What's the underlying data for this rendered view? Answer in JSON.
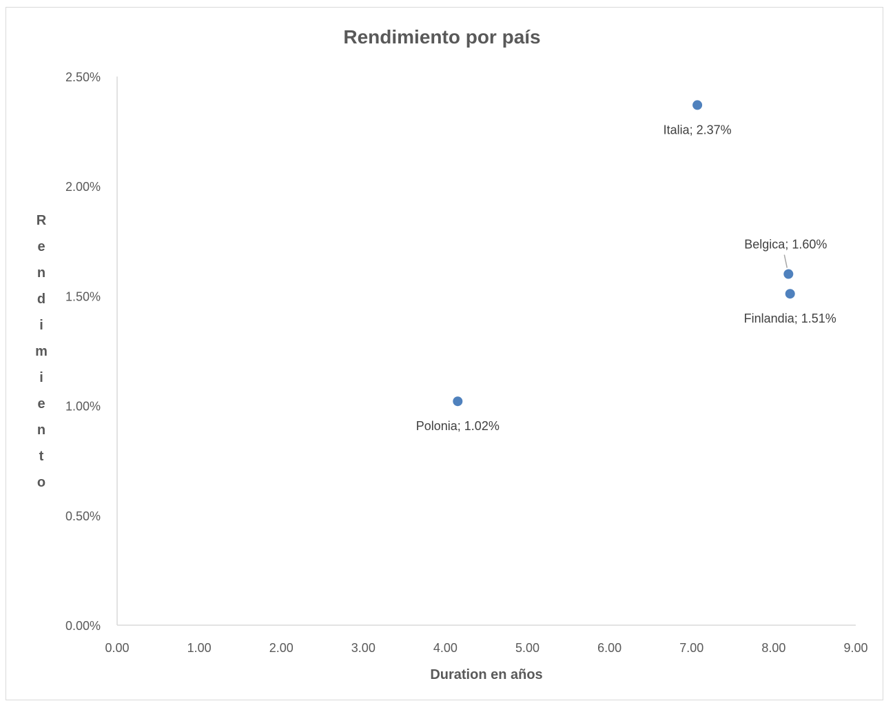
{
  "chart_data": {
    "type": "scatter",
    "title": "Rendimiento por país",
    "xlabel": "Duration en años",
    "ylabel": "Rendimiento",
    "xlim": [
      0,
      9
    ],
    "ylim": [
      0,
      0.025
    ],
    "x_ticks": [
      "0.00",
      "1.00",
      "2.00",
      "3.00",
      "4.00",
      "5.00",
      "6.00",
      "7.00",
      "8.00",
      "9.00"
    ],
    "y_ticks": [
      "0.00%",
      "0.50%",
      "1.00%",
      "1.50%",
      "2.00%",
      "2.50%"
    ],
    "points": [
      {
        "name": "Polonia",
        "x": 4.15,
        "y": 0.0102,
        "label": "Polonia; 1.02%"
      },
      {
        "name": "Italia",
        "x": 7.07,
        "y": 0.0237,
        "label": "Italia; 2.37%"
      },
      {
        "name": "Belgica",
        "x": 8.18,
        "y": 0.016,
        "label": "Belgica; 1.60%"
      },
      {
        "name": "Finlandia",
        "x": 8.2,
        "y": 0.0151,
        "label": "Finlandia; 1.51%"
      }
    ],
    "grid": false,
    "legend": "none",
    "marker_color": "#4f81bd",
    "axis_color": "#d9d9d9",
    "text_color": "#595959"
  }
}
